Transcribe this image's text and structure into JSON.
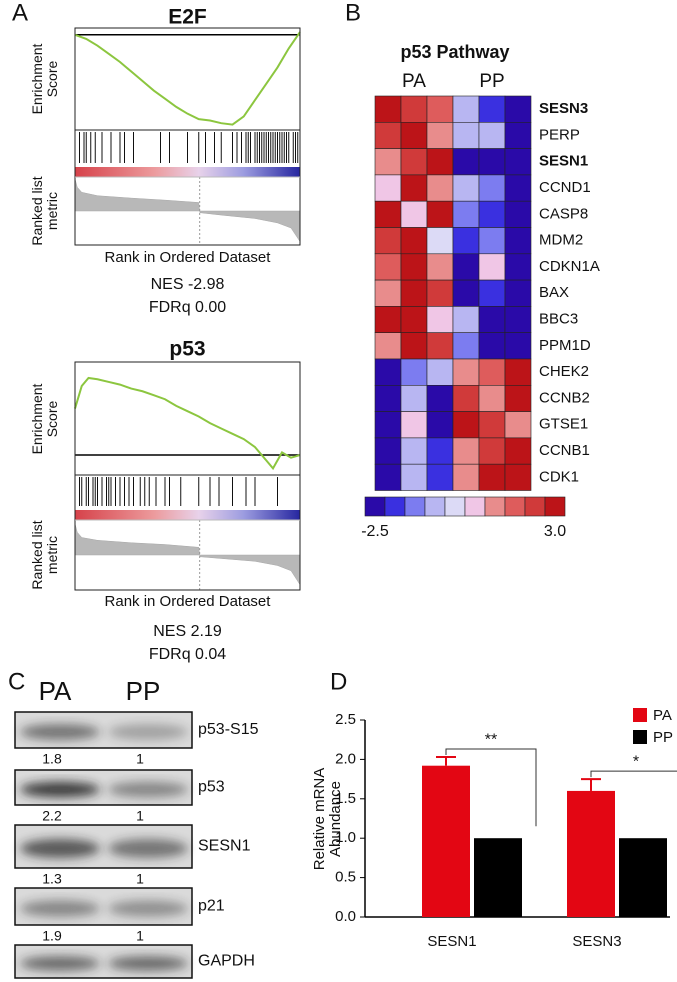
{
  "panel_labels": [
    "A",
    "B",
    "C",
    "D"
  ],
  "chart_data": [
    {
      "type": "gsea",
      "title": "E2F",
      "ylabel": "Enrichment Score",
      "metric_label": "Ranked list metric",
      "xlabel": "Rank in Ordered Dataset",
      "annotations": [
        "NES -2.98",
        "FDRq 0.00"
      ],
      "color": "#8cc63f",
      "xlim": [
        0,
        100
      ],
      "ylim": [
        -0.7,
        0.05
      ],
      "x": [
        0,
        5,
        10,
        15,
        20,
        25,
        30,
        35,
        40,
        45,
        50,
        55,
        60,
        65,
        70,
        75,
        80,
        85,
        90,
        95,
        100
      ],
      "values": [
        0,
        -0.03,
        -0.08,
        -0.14,
        -0.2,
        -0.27,
        -0.34,
        -0.41,
        -0.47,
        -0.53,
        -0.58,
        -0.62,
        -0.63,
        -0.65,
        -0.66,
        -0.6,
        -0.48,
        -0.36,
        -0.24,
        -0.1,
        0.02
      ],
      "hits": [
        2,
        4,
        5,
        7,
        9,
        12,
        16,
        20,
        22,
        26,
        38,
        42,
        50,
        55,
        58,
        62,
        65,
        70,
        72,
        74,
        76,
        77,
        78,
        80,
        81,
        82,
        83,
        84,
        85,
        86,
        87,
        88,
        89,
        90,
        91,
        92,
        93,
        94,
        95,
        97,
        98,
        99
      ],
      "metric_ylim": [
        -1,
        1
      ],
      "metric_x": [
        0,
        1,
        3,
        10,
        25,
        40,
        55,
        55.5,
        65,
        80,
        90,
        96,
        100
      ],
      "metric": [
        0.95,
        0.7,
        0.55,
        0.45,
        0.38,
        0.32,
        0.25,
        -0.05,
        -0.12,
        -0.22,
        -0.35,
        -0.5,
        -0.9
      ]
    },
    {
      "type": "gsea",
      "title": "p53",
      "ylabel": "Enrichment Score",
      "metric_label": "Ranked list metric",
      "xlabel": "Rank in Ordered Dataset",
      "annotations": [
        "NES 2.19",
        "FDRq 0.04"
      ],
      "color": "#8cc63f",
      "xlim": [
        0,
        100
      ],
      "ylim": [
        -0.15,
        0.7
      ],
      "x": [
        0,
        3,
        6,
        10,
        15,
        20,
        25,
        30,
        35,
        40,
        45,
        50,
        55,
        60,
        65,
        70,
        75,
        80,
        85,
        88,
        92,
        96,
        100
      ],
      "values": [
        0.35,
        0.52,
        0.58,
        0.57,
        0.55,
        0.53,
        0.5,
        0.48,
        0.45,
        0.42,
        0.37,
        0.33,
        0.29,
        0.24,
        0.2,
        0.16,
        0.12,
        0.06,
        -0.04,
        -0.1,
        0.02,
        -0.02,
        0
      ],
      "hits": [
        2,
        3,
        5,
        6,
        8,
        9,
        10,
        12,
        14,
        15,
        16,
        18,
        20,
        22,
        24,
        26,
        29,
        31,
        33,
        36,
        40,
        42,
        47,
        55,
        60,
        64,
        70,
        76,
        80,
        90
      ],
      "metric_ylim": [
        -1,
        1
      ],
      "metric_x": [
        0,
        1,
        3,
        10,
        25,
        40,
        55,
        55.5,
        65,
        80,
        90,
        96,
        100
      ],
      "metric": [
        0.9,
        0.65,
        0.5,
        0.42,
        0.35,
        0.3,
        0.22,
        -0.05,
        -0.1,
        -0.18,
        -0.3,
        -0.45,
        -0.85
      ]
    },
    {
      "type": "heatmap",
      "title": "p53 Pathway",
      "groups": [
        "PA",
        "PP"
      ],
      "rows": [
        "SESN3",
        "PERP",
        "SESN1",
        "CCND1",
        "CASP8",
        "MDM2",
        "CDKN1A",
        "BAX",
        "BBC3",
        "PPM1D",
        "CHEK2",
        "CCNB2",
        "GTSE1",
        "CCNB1",
        "CDK1"
      ],
      "bold_rows": [
        0,
        2
      ],
      "values": [
        [
          2.5,
          2.2,
          1.5,
          -0.5,
          -1.8,
          -2.3
        ],
        [
          2.3,
          2.6,
          1.2,
          -0.8,
          -0.6,
          -2.4
        ],
        [
          1.2,
          2.0,
          2.6,
          -2.4,
          -2.3,
          -2.0
        ],
        [
          0.5,
          2.6,
          1.2,
          -0.6,
          -1.0,
          -2.3
        ],
        [
          2.6,
          0.4,
          2.5,
          -1.3,
          -1.8,
          -2.3
        ],
        [
          2.0,
          2.6,
          -0.3,
          -1.5,
          -1.4,
          -2.3
        ],
        [
          1.5,
          2.6,
          1.3,
          -2.3,
          0.3,
          -2.2
        ],
        [
          1.0,
          2.6,
          2.0,
          -2.2,
          -1.5,
          -2.4
        ],
        [
          2.7,
          2.6,
          0.5,
          -0.5,
          -2.3,
          -2.4
        ],
        [
          1.3,
          2.6,
          2.1,
          -1.0,
          -2.3,
          -2.4
        ],
        [
          -2.3,
          -1.0,
          -0.4,
          1.2,
          1.8,
          2.6
        ],
        [
          -2.4,
          -0.5,
          -2.3,
          2.0,
          1.3,
          2.7
        ],
        [
          -2.3,
          0.4,
          -2.3,
          2.6,
          2.0,
          1.3
        ],
        [
          -2.4,
          -0.5,
          -1.6,
          1.2,
          2.1,
          2.6
        ],
        [
          -2.4,
          -0.6,
          -1.5,
          1.1,
          2.5,
          2.6
        ]
      ],
      "colors": [
        "#2a0aa8",
        "#3a30e0",
        "#7c7cf0",
        "#b8b6f2",
        "#dcdaf6",
        "#f0c6e6",
        "#e88c8c",
        "#de5c5c",
        "#d03a3a",
        "#bc1418"
      ],
      "zlim": [
        -2.5,
        3
      ],
      "zticks": [
        -2.5,
        {
          "value": 3,
          "label": "3.0"
        }
      ]
    },
    {
      "type": "bar",
      "ylabel": "Relative mRNA Abundance",
      "categories": [
        "SESN1",
        "SESN3"
      ],
      "series": [
        {
          "name": "PA",
          "color": "#e30613",
          "values": [
            1.92,
            1.6
          ],
          "errors": [
            0.11,
            0.15
          ]
        },
        {
          "name": "PP",
          "color": "#000000",
          "values": [
            1,
            1
          ]
        }
      ],
      "significance": [
        "**",
        "*"
      ],
      "ylim": [
        0,
        2.5
      ],
      "yticks": [
        {
          "value": 0,
          "label": "0.0"
        },
        0.5,
        {
          "value": 1,
          "label": "1.0"
        },
        1.5,
        {
          "value": 2,
          "label": "2.0"
        },
        2.5
      ],
      "legend": "upper right"
    }
  ],
  "blot": {
    "columns": [
      "PA",
      "PP"
    ],
    "rows": [
      {
        "label": "p53-S15",
        "quant": [
          1.8,
          1
        ]
      },
      {
        "label": "p53",
        "quant": [
          2.2,
          1
        ]
      },
      {
        "label": "SESN1",
        "quant": [
          1.3,
          1
        ]
      },
      {
        "label": "p21",
        "quant": [
          1.9,
          1
        ]
      },
      {
        "label": "GAPDH"
      }
    ]
  }
}
